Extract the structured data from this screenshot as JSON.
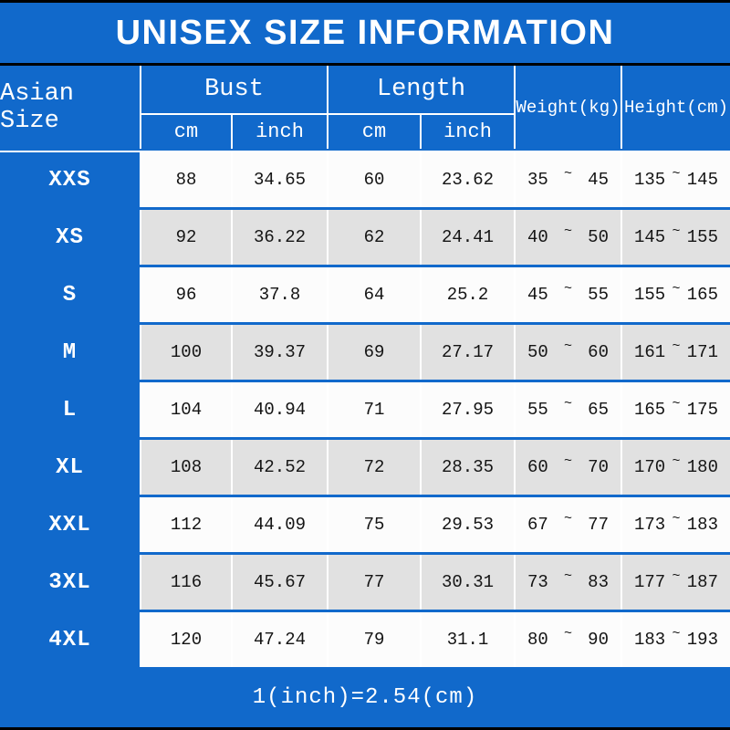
{
  "title": "UNISEX SIZE INFORMATION",
  "footer_note": "1(inch)=2.54(cm)",
  "colors": {
    "blue": "#1169cb",
    "row_main": "#fcfcfc",
    "row_alt": "#e1e1e1",
    "line_black": "#000000",
    "text": "#141414"
  },
  "header": {
    "size_column": "Asian Size",
    "bust": "Bust",
    "length": "Length",
    "cm": "cm",
    "inch": "inch",
    "weight": "Weight(kg)",
    "height": "Height(cm)",
    "tilde": "~"
  },
  "chart_data": {
    "type": "table",
    "title": "UNISEX SIZE INFORMATION",
    "columns": [
      "Asian Size",
      "Bust cm",
      "Bust inch",
      "Length cm",
      "Length inch",
      "Weight(kg)",
      "Height(cm)"
    ],
    "rows": [
      {
        "size": "XXS",
        "bust_cm": "88",
        "bust_inch": "34.65",
        "length_cm": "60",
        "length_inch": "23.62",
        "weight_min": "35",
        "weight_max": "45",
        "height_min": "135",
        "height_max": "145"
      },
      {
        "size": "XS",
        "bust_cm": "92",
        "bust_inch": "36.22",
        "length_cm": "62",
        "length_inch": "24.41",
        "weight_min": "40",
        "weight_max": "50",
        "height_min": "145",
        "height_max": "155"
      },
      {
        "size": "S",
        "bust_cm": "96",
        "bust_inch": "37.8",
        "length_cm": "64",
        "length_inch": "25.2",
        "weight_min": "45",
        "weight_max": "55",
        "height_min": "155",
        "height_max": "165"
      },
      {
        "size": "M",
        "bust_cm": "100",
        "bust_inch": "39.37",
        "length_cm": "69",
        "length_inch": "27.17",
        "weight_min": "50",
        "weight_max": "60",
        "height_min": "161",
        "height_max": "171"
      },
      {
        "size": "L",
        "bust_cm": "104",
        "bust_inch": "40.94",
        "length_cm": "71",
        "length_inch": "27.95",
        "weight_min": "55",
        "weight_max": "65",
        "height_min": "165",
        "height_max": "175"
      },
      {
        "size": "XL",
        "bust_cm": "108",
        "bust_inch": "42.52",
        "length_cm": "72",
        "length_inch": "28.35",
        "weight_min": "60",
        "weight_max": "70",
        "height_min": "170",
        "height_max": "180"
      },
      {
        "size": "XXL",
        "bust_cm": "112",
        "bust_inch": "44.09",
        "length_cm": "75",
        "length_inch": "29.53",
        "weight_min": "67",
        "weight_max": "77",
        "height_min": "173",
        "height_max": "183"
      },
      {
        "size": "3XL",
        "bust_cm": "116",
        "bust_inch": "45.67",
        "length_cm": "77",
        "length_inch": "30.31",
        "weight_min": "73",
        "weight_max": "83",
        "height_min": "177",
        "height_max": "187"
      },
      {
        "size": "4XL",
        "bust_cm": "120",
        "bust_inch": "47.24",
        "length_cm": "79",
        "length_inch": "31.1",
        "weight_min": "80",
        "weight_max": "90",
        "height_min": "183",
        "height_max": "193"
      }
    ],
    "footnote": "1(inch)=2.54(cm)"
  }
}
